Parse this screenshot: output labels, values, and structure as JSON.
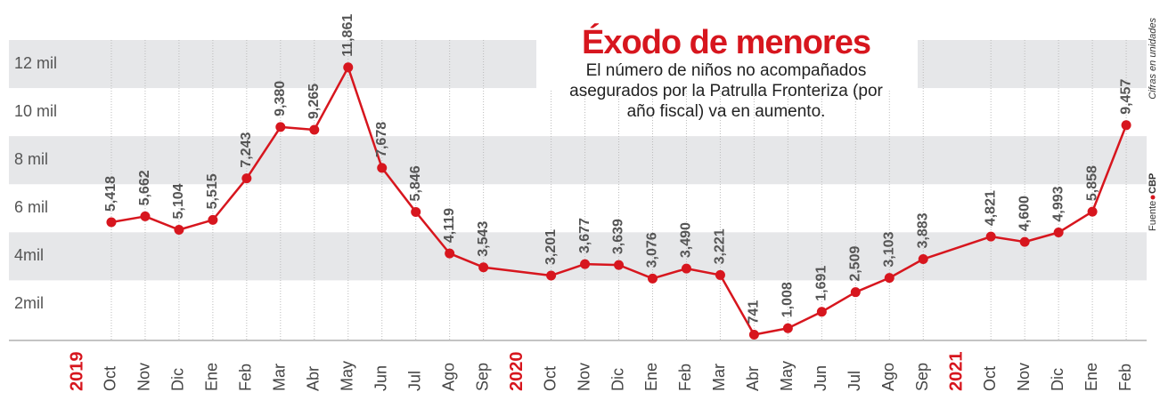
{
  "chart_data": {
    "type": "line",
    "title": "Éxodo de menores",
    "subtitle_lines": [
      "El número de niños no acompañados",
      "asegurados por la Patrulla Fronteriza (por",
      "año fiscal) va en aumento."
    ],
    "note": "Cifras en unidades",
    "source_label": "Fuente",
    "source": "CBP",
    "color": "#d7161e",
    "ylim": [
      500,
      13000
    ],
    "yticks": [
      {
        "value": 2000,
        "label": "2mil"
      },
      {
        "value": 4000,
        "label": "4mil"
      },
      {
        "value": 6000,
        "label": "6 mil"
      },
      {
        "value": 8000,
        "label": "8 mil"
      },
      {
        "value": 10000,
        "label": "10 mil"
      },
      {
        "value": 12000,
        "label": "12 mil"
      }
    ],
    "groups": [
      {
        "year": "2019",
        "categories": [
          "Oct",
          "Nov",
          "Dic",
          "Ene",
          "Feb",
          "Mar",
          "Abr",
          "May",
          "Jun",
          "Jul",
          "Ago",
          "Sep"
        ],
        "values": [
          5418,
          5662,
          5104,
          5515,
          7243,
          9380,
          9265,
          11861,
          7678,
          5846,
          4119,
          3543
        ],
        "value_labels": [
          "5,418",
          "5,662",
          "5,104",
          "5,515",
          "7,243",
          "9,380",
          "9,265",
          "11,861",
          "7,678",
          "5,846",
          "4,119",
          "3,543"
        ]
      },
      {
        "year": "2020",
        "categories": [
          "Oct",
          "Nov",
          "Dic",
          "Ene",
          "Feb",
          "Mar",
          "Abr",
          "May",
          "Jun",
          "Jul",
          "Ago",
          "Sep"
        ],
        "values": [
          3201,
          3677,
          3639,
          3076,
          3490,
          3221,
          741,
          1008,
          1691,
          2509,
          3103,
          3883
        ],
        "value_labels": [
          "3,201",
          "3,677",
          "3,639",
          "3,076",
          "3,490",
          "3,221",
          "741",
          "1,008",
          "1,691",
          "2,509",
          "3,103",
          "3,883"
        ]
      },
      {
        "year": "2021",
        "categories": [
          "Oct",
          "Nov",
          "Dic",
          "Ene",
          "Feb"
        ],
        "values": [
          4821,
          4600,
          4993,
          5858,
          9457
        ],
        "value_labels": [
          "4,821",
          "4,600",
          "4,993",
          "5,858",
          "9,457"
        ]
      }
    ]
  }
}
